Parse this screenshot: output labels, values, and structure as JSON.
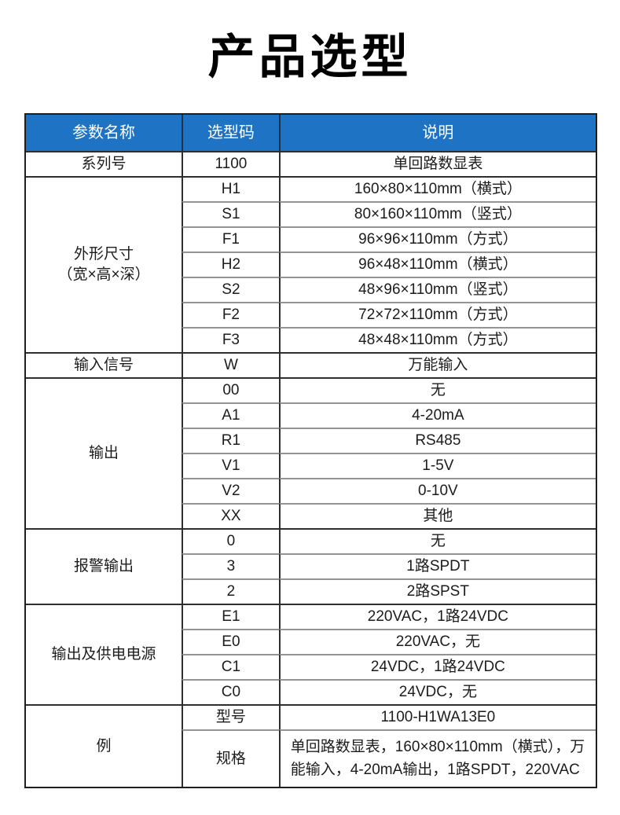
{
  "page": {
    "title": "产品选型"
  },
  "colors": {
    "header_bg": "#1e73c5",
    "header_text": "#ffffff",
    "outer_border": "#1f1f1f",
    "group_border": "#2e2e2e",
    "inner_border": "#949494",
    "body_text": "#1c1c1c"
  },
  "table": {
    "headers": {
      "param": "参数名称",
      "code": "选型码",
      "desc": "说明"
    },
    "groups": [
      {
        "param": "系列号",
        "rows": [
          {
            "code": "1100",
            "desc": "单回路数显表"
          }
        ]
      },
      {
        "param": "外形尺寸\n（宽×高×深）",
        "rows": [
          {
            "code": "H1",
            "desc": "160×80×110mm（横式）"
          },
          {
            "code": "S1",
            "desc": "80×160×110mm（竖式）"
          },
          {
            "code": "F1",
            "desc": "96×96×110mm（方式）"
          },
          {
            "code": "H2",
            "desc": "96×48×110mm（横式）"
          },
          {
            "code": "S2",
            "desc": "48×96×110mm（竖式）"
          },
          {
            "code": "F2",
            "desc": "72×72×110mm（方式）"
          },
          {
            "code": "F3",
            "desc": "48×48×110mm（方式）"
          }
        ]
      },
      {
        "param": "输入信号",
        "rows": [
          {
            "code": "W",
            "desc": "万能输入"
          }
        ]
      },
      {
        "param": "输出",
        "rows": [
          {
            "code": "00",
            "desc": "无"
          },
          {
            "code": "A1",
            "desc": "4-20mA"
          },
          {
            "code": "R1",
            "desc": "RS485"
          },
          {
            "code": "V1",
            "desc": "1-5V"
          },
          {
            "code": "V2",
            "desc": "0-10V"
          },
          {
            "code": "XX",
            "desc": "其他"
          }
        ]
      },
      {
        "param": "报警输出",
        "rows": [
          {
            "code": "0",
            "desc": "无"
          },
          {
            "code": "3",
            "desc": "1路SPDT"
          },
          {
            "code": "2",
            "desc": "2路SPST"
          }
        ]
      },
      {
        "param": "输出及供电电源",
        "rows": [
          {
            "code": "E1",
            "desc": "220VAC，1路24VDC"
          },
          {
            "code": "E0",
            "desc": "220VAC，无"
          },
          {
            "code": "C1",
            "desc": "24VDC，1路24VDC"
          },
          {
            "code": "C0",
            "desc": "24VDC，无"
          }
        ]
      },
      {
        "param": "例",
        "rows": [
          {
            "code": "型号",
            "desc": "1100-H1WA13E0"
          },
          {
            "code": "规格",
            "desc": "单回路数显表，160×80×110mm（横式），万能输入，4-20mA输出，1路SPDT，220VAC"
          }
        ]
      }
    ]
  }
}
